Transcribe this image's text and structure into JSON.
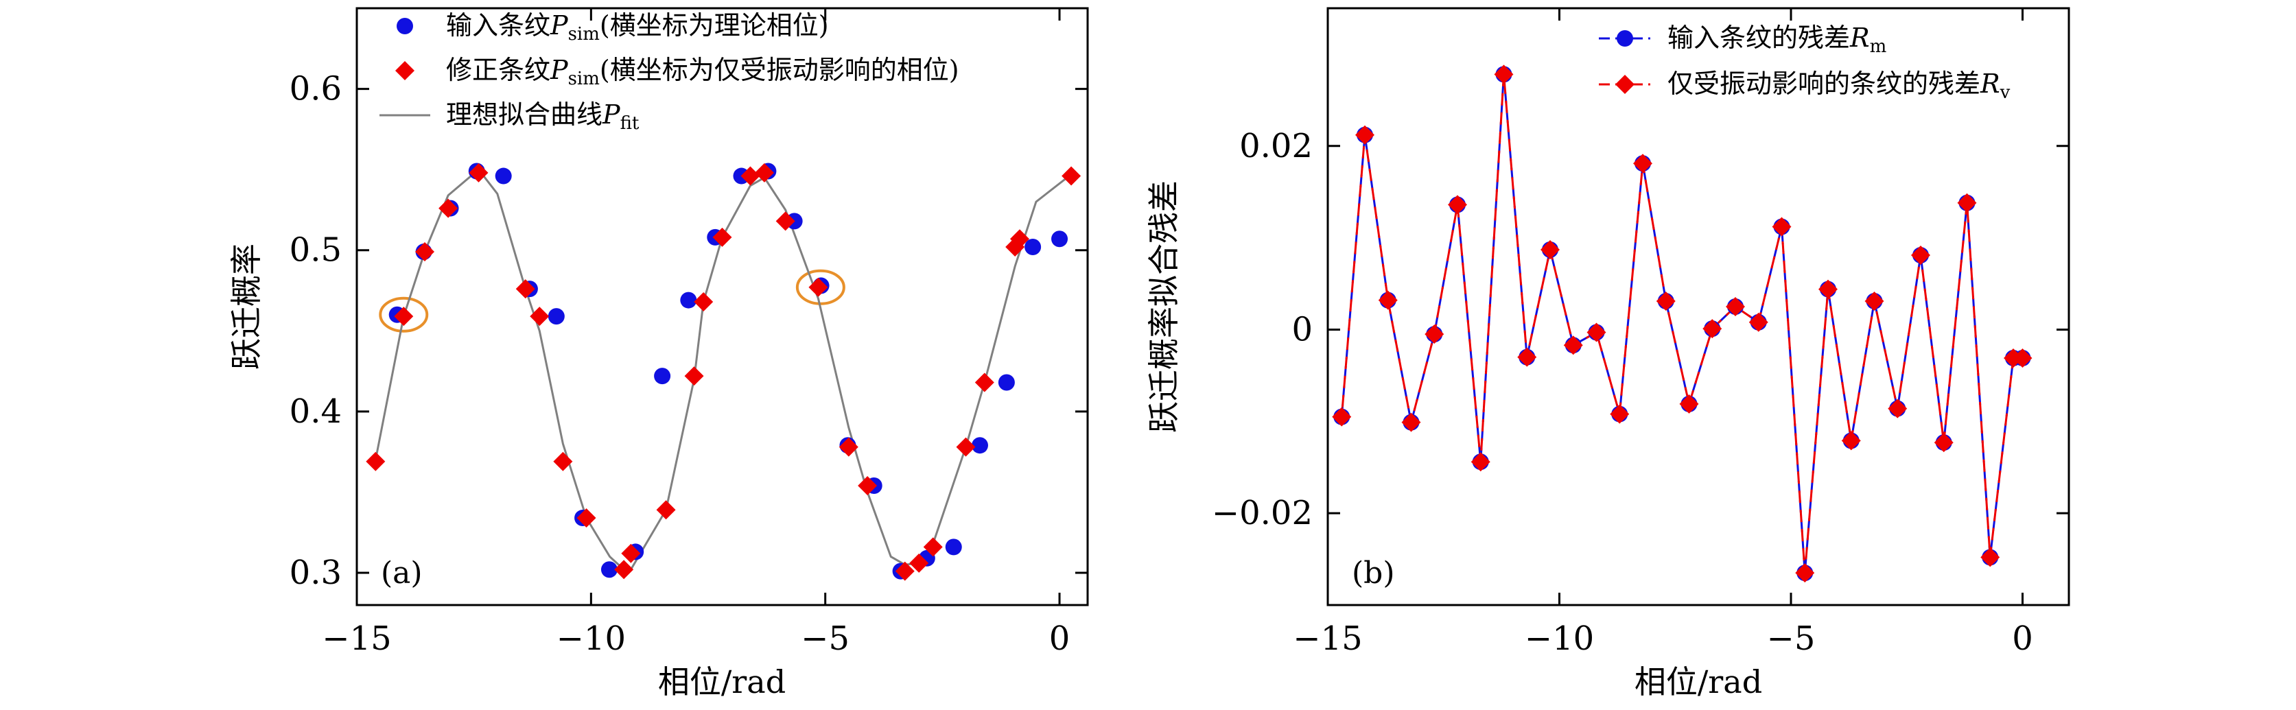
{
  "chart_data": [
    {
      "type": "scatter",
      "panel_label": "(a)",
      "xlabel": "相位/rad",
      "ylabel": "跃迁概率",
      "xlim": [
        -15,
        0.6
      ],
      "ylim": [
        0.28,
        0.65
      ],
      "xticks": [
        -15,
        -10,
        -5,
        0
      ],
      "xtick_labels": [
        "−15",
        "−10",
        "−5",
        "0"
      ],
      "yticks": [
        0.3,
        0.4,
        0.5,
        0.6
      ],
      "ytick_labels": [
        "0.3",
        "0.4",
        "0.5",
        "0.6"
      ],
      "legend_position": "top-left",
      "legend": [
        {
          "marker": "circle",
          "text": "输入条纹",
          "math": "P",
          "sub": "sim",
          "tail": "(横坐标为理论相位)"
        },
        {
          "marker": "diamond",
          "text": "修正条纹",
          "math": "P",
          "sub": "sim",
          "tail": "(横坐标为仅受振动影响的相位)"
        },
        {
          "marker": "line",
          "text": "理想拟合曲线",
          "math": "P",
          "sub": "fit",
          "tail": ""
        }
      ],
      "highlighted_points": [
        {
          "x": -14.0,
          "y": 0.46
        },
        {
          "x": -5.1,
          "y": 0.477
        }
      ],
      "series": [
        {
          "name": "输入条纹Psim(横坐标为理论相位)",
          "marker": "circle",
          "color": "#1010e0",
          "x": [
            -14.14,
            -13.57,
            -13.0,
            -12.44,
            -11.87,
            -11.31,
            -10.74,
            -10.18,
            -9.61,
            -9.05,
            -8.48,
            -7.92,
            -7.35,
            -6.79,
            -6.22,
            -5.66,
            -5.09,
            -4.52,
            -3.96,
            -3.39,
            -2.83,
            -2.26,
            -1.7,
            -1.13,
            -0.57,
            0.0
          ],
          "y": [
            0.46,
            0.499,
            0.526,
            0.549,
            0.546,
            0.476,
            0.459,
            0.334,
            0.302,
            0.313,
            0.422,
            0.469,
            0.508,
            0.546,
            0.549,
            0.518,
            0.478,
            0.379,
            0.354,
            0.301,
            0.309,
            0.316,
            0.379,
            0.418,
            0.502,
            0.507
          ]
        },
        {
          "name": "修正条纹Psim(横坐标为仅受振动影响的相位)",
          "marker": "diamond",
          "color": "#ee0000",
          "x": [
            -14.6,
            -14.0,
            -13.55,
            -13.05,
            -12.4,
            -11.4,
            -11.1,
            -10.6,
            -10.1,
            -9.3,
            -9.15,
            -8.4,
            -7.8,
            -7.6,
            -7.2,
            -6.6,
            -6.3,
            -5.85,
            -5.15,
            -4.5,
            -4.1,
            -3.3,
            -3.0,
            -2.7,
            -2.0,
            -1.6,
            -0.95,
            -0.85,
            0.25
          ],
          "y": [
            0.369,
            0.459,
            0.499,
            0.526,
            0.548,
            0.476,
            0.459,
            0.369,
            0.334,
            0.302,
            0.312,
            0.339,
            0.422,
            0.468,
            0.508,
            0.546,
            0.548,
            0.518,
            0.477,
            0.378,
            0.354,
            0.301,
            0.306,
            0.316,
            0.378,
            0.418,
            0.502,
            0.507,
            0.546
          ]
        },
        {
          "name": "理想拟合曲线Pfit",
          "marker": "line",
          "color": "#808080",
          "x": [
            -14.6,
            -14.0,
            -13.55,
            -13.05,
            -12.4,
            -12.0,
            -11.4,
            -11.1,
            -10.6,
            -10.1,
            -9.6,
            -9.3,
            -9.15,
            -8.4,
            -7.8,
            -7.6,
            -7.2,
            -6.6,
            -6.3,
            -5.85,
            -5.15,
            -4.5,
            -4.1,
            -3.6,
            -3.3,
            -3.0,
            -2.7,
            -2.0,
            -1.6,
            -0.95,
            -0.5,
            0.25
          ],
          "y": [
            0.37,
            0.459,
            0.499,
            0.534,
            0.55,
            0.535,
            0.476,
            0.45,
            0.38,
            0.334,
            0.31,
            0.302,
            0.302,
            0.339,
            0.42,
            0.468,
            0.508,
            0.54,
            0.545,
            0.525,
            0.47,
            0.39,
            0.35,
            0.31,
            0.305,
            0.306,
            0.318,
            0.378,
            0.418,
            0.49,
            0.53,
            0.547
          ]
        }
      ]
    },
    {
      "type": "line",
      "panel_label": "(b)",
      "xlabel": "相位/rad",
      "ylabel": "跃迁概率拟合残差",
      "xlim": [
        -15,
        1
      ],
      "ylim": [
        -0.03,
        0.035
      ],
      "xticks": [
        -15,
        -10,
        -5,
        0
      ],
      "xtick_labels": [
        "−15",
        "−10",
        "−5",
        "0"
      ],
      "yticks": [
        -0.02,
        0,
        0.02
      ],
      "ytick_labels": [
        "−0.02",
        "0",
        "0.02"
      ],
      "legend_position": "top-right",
      "legend": [
        {
          "marker": "circle",
          "text": "输入条纹的残差",
          "math": "R",
          "sub": "m"
        },
        {
          "marker": "diamond",
          "text": "仅受振动影响的条纹的残差",
          "math": "R",
          "sub": "v"
        }
      ],
      "series": [
        {
          "name": "输入条纹的残差Rm",
          "marker": "circle",
          "color": "#1010e0",
          "line": "dashed",
          "x": [
            -14.7,
            -14.2,
            -13.7,
            -13.2,
            -12.7,
            -12.2,
            -11.7,
            -11.2,
            -10.7,
            -10.2,
            -9.7,
            -9.2,
            -8.7,
            -8.2,
            -7.7,
            -7.2,
            -6.7,
            -6.2,
            -5.7,
            -5.2,
            -4.7,
            -4.2,
            -3.7,
            -3.2,
            -2.7,
            -2.2,
            -1.7,
            -1.2,
            -0.7,
            -0.2,
            0.0
          ],
          "y": [
            -0.0095,
            0.0212,
            0.0032,
            -0.0101,
            -0.0005,
            0.0136,
            -0.0144,
            0.0278,
            -0.003,
            0.0087,
            -0.0017,
            -0.0003,
            -0.0092,
            0.0181,
            0.0031,
            -0.0081,
            0.0001,
            0.0025,
            0.0008,
            0.0112,
            -0.0265,
            0.0044,
            -0.0121,
            0.0031,
            -0.0086,
            0.0081,
            -0.0123,
            0.0138,
            -0.0248,
            -0.0031,
            -0.0031
          ]
        },
        {
          "name": "仅受振动影响的条纹的残差Rv",
          "marker": "diamond",
          "color": "#ee0000",
          "line": "dashed",
          "x": [
            -14.7,
            -14.2,
            -13.7,
            -13.2,
            -12.7,
            -12.2,
            -11.7,
            -11.2,
            -10.7,
            -10.2,
            -9.7,
            -9.2,
            -8.7,
            -8.2,
            -7.7,
            -7.2,
            -6.7,
            -6.2,
            -5.7,
            -5.2,
            -4.7,
            -4.2,
            -3.7,
            -3.2,
            -2.7,
            -2.2,
            -1.7,
            -1.2,
            -0.7,
            -0.2,
            0.0
          ],
          "y": [
            -0.0095,
            0.0212,
            0.0032,
            -0.0101,
            -0.0005,
            0.0136,
            -0.0144,
            0.0278,
            -0.003,
            0.0087,
            -0.0017,
            -0.0003,
            -0.0092,
            0.0181,
            0.0031,
            -0.0081,
            0.0001,
            0.0025,
            0.0008,
            0.0112,
            -0.0265,
            0.0044,
            -0.0121,
            0.0031,
            -0.0086,
            0.0081,
            -0.0123,
            0.0138,
            -0.0248,
            -0.0031,
            -0.0031
          ]
        }
      ]
    }
  ]
}
